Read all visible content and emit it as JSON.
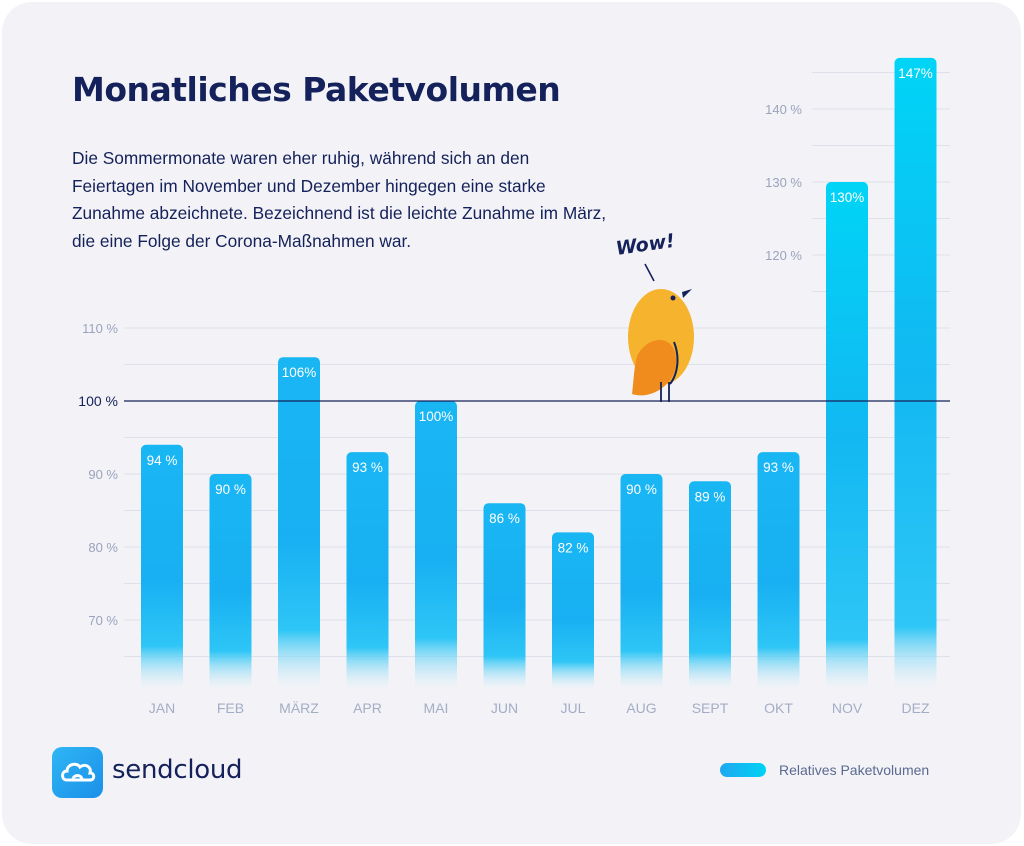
{
  "title": "Monatliches Paketvolumen",
  "subtitle": "Die Sommermonate waren eher ruhig, während sich an den Feiertagen im November und Dezember hingegen eine starke Zunahme abzeichnete. Bezeichnend ist die leichte Zunahme im März, die eine Folge der Corona-Maßnahmen war.",
  "brand": "sendcloud",
  "legend_label": "Relatives Paketvolumen",
  "annotation": "Wow!",
  "icons": {
    "logo": "cloud-icon",
    "mascot": "bird-icon"
  },
  "colors": {
    "text": "#14215a",
    "bar_top": "#1fa8f0",
    "bar_accent": "#00d2f5",
    "background": "#f3f3f7"
  },
  "chart_data": {
    "type": "bar",
    "categories": [
      "JAN",
      "FEB",
      "MÄRZ",
      "APR",
      "MAI",
      "JUN",
      "JUL",
      "AUG",
      "SEPT",
      "OKT",
      "NOV",
      "DEZ"
    ],
    "values": [
      94,
      90,
      106,
      93,
      100,
      86,
      82,
      90,
      89,
      93,
      130,
      147
    ],
    "value_labels": [
      "94 %",
      "90 %",
      "106%",
      "93 %",
      "100%",
      "86 %",
      "82 %",
      "90 %",
      "89 %",
      "93 %",
      "130%",
      "147%"
    ],
    "series": [
      {
        "name": "Relatives Paketvolumen",
        "values": [
          94,
          90,
          106,
          93,
          100,
          86,
          82,
          90,
          89,
          93,
          130,
          147
        ]
      }
    ],
    "yticks_left": [
      {
        "value": 70,
        "label": "70 %"
      },
      {
        "value": 80,
        "label": "80 %"
      },
      {
        "value": 90,
        "label": "90 %"
      },
      {
        "value": 100,
        "label": "100 %"
      },
      {
        "value": 110,
        "label": "110 %"
      }
    ],
    "yticks_right": [
      {
        "value": 120,
        "label": "120 %"
      },
      {
        "value": 130,
        "label": "130 %"
      },
      {
        "value": 140,
        "label": "140 %"
      }
    ],
    "reference_line": 100,
    "ylim": [
      60,
      150
    ],
    "grid": true,
    "legend_position": "bottom-right"
  }
}
